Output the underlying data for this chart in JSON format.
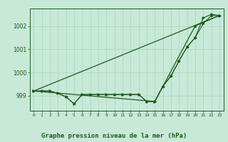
{
  "background_color": "#c8e8d8",
  "grid_color": "#b0d8c0",
  "line_color": "#1a5c1a",
  "title": "Graphe pression niveau de la mer (hPa)",
  "title_fontsize": 6.5,
  "x_ticks": [
    0,
    1,
    2,
    3,
    4,
    5,
    6,
    7,
    8,
    9,
    10,
    11,
    12,
    13,
    14,
    15,
    16,
    17,
    18,
    19,
    20,
    21,
    22,
    23
  ],
  "y_ticks": [
    999,
    1000,
    1001,
    1002
  ],
  "ylim": [
    998.35,
    1002.75
  ],
  "xlim": [
    -0.5,
    23.5
  ],
  "series": {
    "line1_x": [
      0,
      1,
      2,
      3,
      4,
      5,
      6,
      7,
      8,
      9,
      10,
      11,
      12,
      13,
      14,
      15,
      16,
      17,
      18,
      19,
      20,
      21,
      22,
      23
    ],
    "line1_y": [
      999.2,
      999.2,
      999.2,
      999.1,
      998.95,
      998.65,
      999.05,
      999.05,
      999.05,
      999.05,
      999.05,
      999.05,
      999.05,
      999.05,
      998.75,
      998.75,
      999.4,
      999.85,
      1000.5,
      1001.1,
      1001.5,
      1002.35,
      1002.5,
      1002.45
    ],
    "line2_x": [
      0,
      1,
      2,
      3,
      4,
      5,
      6,
      7,
      8,
      9,
      10,
      11,
      12,
      13,
      14,
      15,
      16,
      17,
      18,
      19,
      20,
      21,
      22,
      23
    ],
    "line2_y": [
      999.2,
      999.2,
      999.2,
      999.1,
      998.95,
      998.65,
      999.05,
      999.05,
      999.05,
      999.05,
      999.05,
      999.05,
      999.05,
      999.05,
      998.75,
      998.75,
      999.4,
      999.85,
      1000.5,
      1001.1,
      1001.5,
      1002.1,
      1002.45,
      1002.45
    ],
    "line3_x": [
      0,
      15,
      20,
      23
    ],
    "line3_y": [
      999.2,
      998.75,
      1002.0,
      1002.45
    ],
    "line4_x": [
      0,
      23
    ],
    "line4_y": [
      999.2,
      1002.45
    ]
  }
}
